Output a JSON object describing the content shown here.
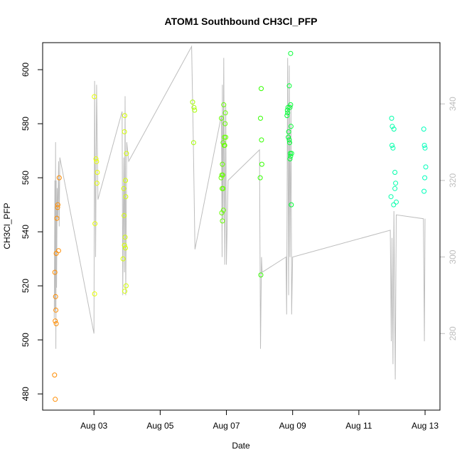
{
  "chart_data": {
    "type": "scatter",
    "title": "ATOM1 Southbound CH3Cl_PFP",
    "xlabel": "Date",
    "ylabel": "CH3Cl_PFP",
    "x_ticks": [
      "Aug 03",
      "Aug 05",
      "Aug 07",
      "Aug 09",
      "Aug 11",
      "Aug 13"
    ],
    "x_tick_days": [
      3,
      5,
      7,
      9,
      11,
      13
    ],
    "xlim_days": [
      1.45,
      13.45
    ],
    "ylim": [
      474,
      610
    ],
    "y_ticks": [
      480,
      500,
      520,
      540,
      560,
      580,
      600
    ],
    "y2_ticks": [
      280,
      300,
      320,
      340
    ],
    "y2lim": [
      260,
      356
    ],
    "grid": false,
    "legend": "none",
    "colors": {
      "axis": "#000000",
      "line": "#bdbdbd",
      "right_axis": "#bdbdbd"
    },
    "series": [
      {
        "color": "#ff8c00",
        "points": [
          [
            1.83,
            478
          ],
          [
            1.81,
            487
          ],
          [
            1.86,
            506
          ],
          [
            1.83,
            507
          ],
          [
            1.85,
            511
          ],
          [
            1.84,
            516
          ],
          [
            1.82,
            525
          ],
          [
            1.86,
            532
          ],
          [
            1.88,
            545
          ],
          [
            1.9,
            549
          ],
          [
            1.91,
            550
          ],
          [
            1.93,
            533
          ],
          [
            1.95,
            560
          ]
        ]
      },
      {
        "color": "#e6ff00",
        "points": [
          [
            3.01,
            590
          ],
          [
            3.06,
            567
          ],
          [
            3.08,
            566
          ],
          [
            3.1,
            562
          ],
          [
            3.09,
            558
          ],
          [
            3.03,
            543
          ],
          [
            3.02,
            517
          ]
        ]
      },
      {
        "color": "#d4ff00",
        "points": [
          [
            3.93,
            583
          ],
          [
            3.92,
            577
          ],
          [
            3.98,
            569
          ],
          [
            3.95,
            559
          ],
          [
            3.9,
            556
          ],
          [
            3.96,
            553
          ],
          [
            3.91,
            546
          ],
          [
            3.94,
            538
          ],
          [
            3.92,
            535
          ],
          [
            3.95,
            534
          ],
          [
            3.88,
            530
          ],
          [
            3.97,
            520
          ],
          [
            3.93,
            518
          ]
        ]
      },
      {
        "color": "#a6ff00",
        "points": [
          [
            5.98,
            588
          ],
          [
            6.02,
            586
          ],
          [
            6.04,
            585
          ],
          [
            6.01,
            573
          ]
        ]
      },
      {
        "color": "#66ff00",
        "points": [
          [
            6.92,
            587
          ],
          [
            6.97,
            584
          ],
          [
            6.85,
            582
          ],
          [
            6.96,
            580
          ],
          [
            6.94,
            575
          ],
          [
            6.98,
            575
          ],
          [
            6.9,
            573
          ],
          [
            6.93,
            572
          ],
          [
            6.95,
            572
          ],
          [
            6.88,
            565
          ],
          [
            6.86,
            561
          ],
          [
            6.89,
            561
          ],
          [
            6.84,
            560
          ],
          [
            6.87,
            556
          ],
          [
            6.9,
            556
          ],
          [
            6.91,
            548
          ],
          [
            6.86,
            547
          ],
          [
            6.88,
            544
          ]
        ]
      },
      {
        "color": "#33ff00",
        "points": [
          [
            8.05,
            593
          ],
          [
            8.03,
            582
          ],
          [
            8.06,
            574
          ],
          [
            8.07,
            565
          ],
          [
            8.02,
            560
          ],
          [
            8.04,
            524
          ]
        ]
      },
      {
        "color": "#00ff33",
        "points": [
          [
            8.94,
            606
          ],
          [
            8.9,
            594
          ],
          [
            8.86,
            586
          ],
          [
            8.92,
            586
          ],
          [
            8.94,
            587
          ],
          [
            8.84,
            585
          ],
          [
            8.85,
            584
          ],
          [
            8.83,
            583
          ],
          [
            8.95,
            579
          ],
          [
            8.88,
            577
          ],
          [
            8.87,
            575
          ],
          [
            8.9,
            574
          ],
          [
            8.91,
            573
          ],
          [
            8.93,
            569
          ],
          [
            8.97,
            569
          ],
          [
            8.94,
            568
          ],
          [
            8.92,
            567
          ],
          [
            8.96,
            550
          ]
        ]
      },
      {
        "color": "#00ffaa",
        "points": [
          [
            11.99,
            582
          ],
          [
            12.01,
            579
          ],
          [
            12.06,
            578
          ],
          [
            12.0,
            572
          ],
          [
            12.03,
            571
          ],
          [
            12.09,
            562
          ],
          [
            12.11,
            558
          ],
          [
            12.09,
            556
          ],
          [
            11.97,
            553
          ],
          [
            12.05,
            550
          ],
          [
            12.13,
            551
          ]
        ]
      },
      {
        "color": "#00ffbb",
        "points": [
          [
            12.96,
            578
          ],
          [
            12.98,
            572
          ],
          [
            13.0,
            571
          ],
          [
            13.02,
            564
          ],
          [
            12.99,
            560
          ],
          [
            12.97,
            555
          ]
        ]
      }
    ],
    "line_series": {
      "color": "#bdbdbd",
      "axis": "right",
      "points": [
        [
          1.8,
          284
        ],
        [
          1.82,
          320
        ],
        [
          1.83,
          286
        ],
        [
          1.84,
          330
        ],
        [
          1.85,
          276
        ],
        [
          1.86,
          320
        ],
        [
          1.87,
          292
        ],
        [
          1.89,
          318
        ],
        [
          1.91,
          310
        ],
        [
          1.93,
          325
        ],
        [
          1.95,
          308
        ],
        [
          1.97,
          326
        ],
        [
          3.0,
          280
        ],
        [
          3.02,
          346
        ],
        [
          3.05,
          300
        ],
        [
          3.08,
          345
        ],
        [
          3.12,
          315
        ],
        [
          3.85,
          338
        ],
        [
          3.87,
          290
        ],
        [
          3.9,
          326
        ],
        [
          3.92,
          296
        ],
        [
          3.94,
          342
        ],
        [
          3.96,
          290
        ],
        [
          3.99,
          330
        ],
        [
          4.05,
          325
        ],
        [
          5.95,
          355
        ],
        [
          6.0,
          330
        ],
        [
          6.05,
          302
        ],
        [
          6.85,
          337
        ],
        [
          6.87,
          300
        ],
        [
          6.88,
          345
        ],
        [
          6.9,
          310
        ],
        [
          6.92,
          352
        ],
        [
          6.95,
          298
        ],
        [
          6.98,
          340
        ],
        [
          7.0,
          298
        ],
        [
          7.05,
          320
        ],
        [
          8.0,
          328
        ],
        [
          8.03,
          276
        ],
        [
          8.06,
          300
        ],
        [
          8.08,
          296
        ],
        [
          8.8,
          300
        ],
        [
          8.82,
          285
        ],
        [
          8.85,
          352
        ],
        [
          8.88,
          290
        ],
        [
          8.9,
          350
        ],
        [
          8.92,
          300
        ],
        [
          8.95,
          340
        ],
        [
          8.97,
          285
        ],
        [
          9.0,
          300
        ],
        [
          11.95,
          307
        ],
        [
          11.98,
          278
        ],
        [
          12.0,
          305
        ],
        [
          12.03,
          272
        ],
        [
          12.06,
          312
        ],
        [
          12.1,
          268
        ],
        [
          12.13,
          311
        ],
        [
          12.95,
          310
        ],
        [
          12.98,
          278
        ],
        [
          13.0,
          310
        ]
      ]
    }
  }
}
